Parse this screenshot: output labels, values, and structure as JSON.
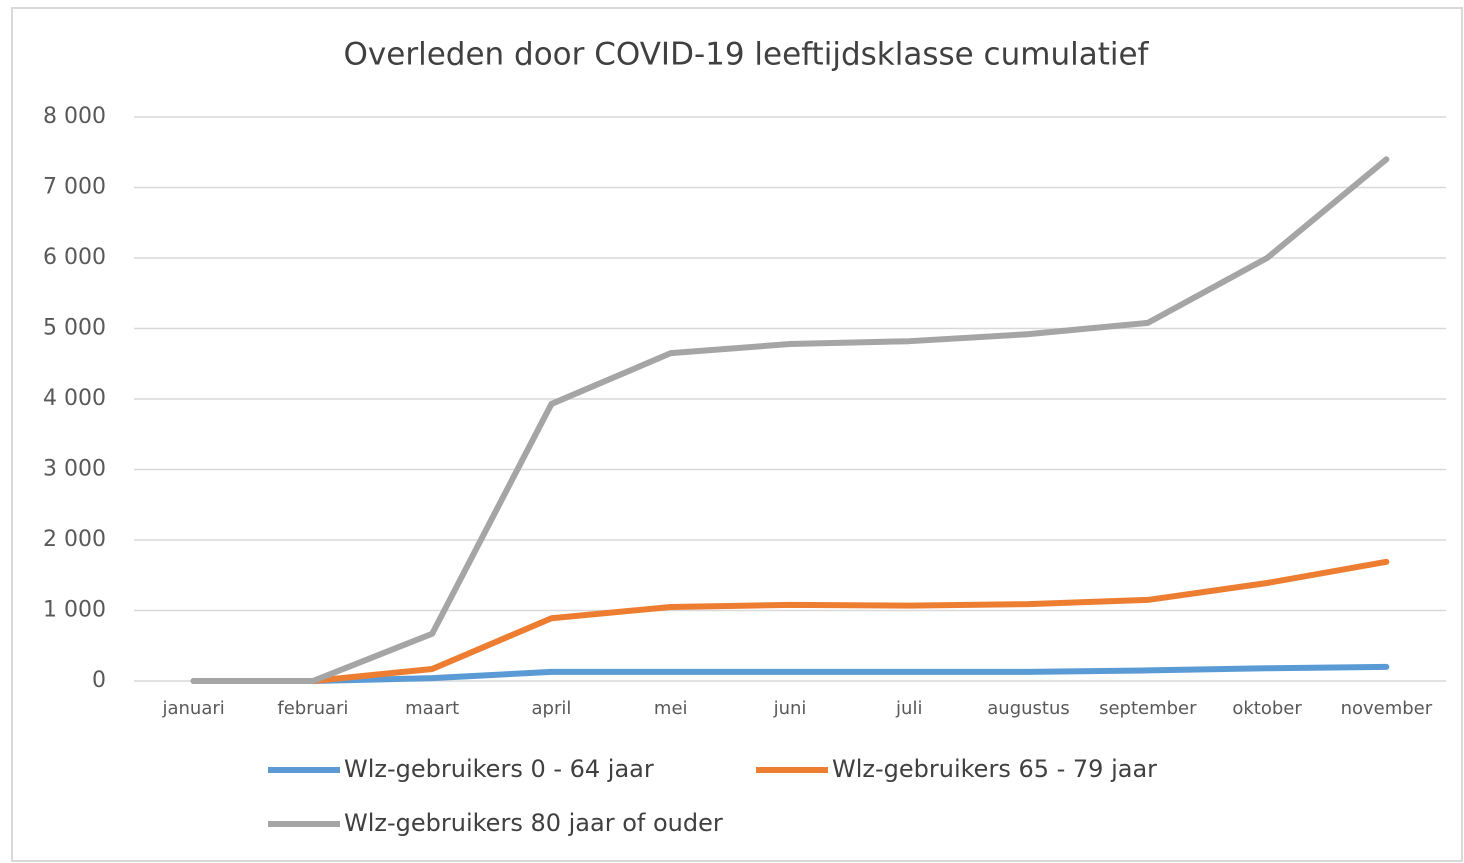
{
  "chart_data": {
    "type": "line",
    "title": "Overleden door COVID-19 leeftijdsklasse cumulatief",
    "categories": [
      "januari",
      "februari",
      "maart",
      "april",
      "mei",
      "juni",
      "juli",
      "augustus",
      "september",
      "oktober",
      "november"
    ],
    "series": [
      {
        "name": "Wlz-gebruikers 0 - 64 jaar",
        "color": "#5b9bd5",
        "values": [
          0,
          0,
          40,
          130,
          130,
          130,
          130,
          130,
          150,
          180,
          200
        ]
      },
      {
        "name": "Wlz-gebruikers 65 - 79 jaar",
        "color": "#ed7d31",
        "values": [
          0,
          0,
          170,
          890,
          1050,
          1080,
          1070,
          1090,
          1150,
          1390,
          1690
        ]
      },
      {
        "name": "Wlz-gebruikers 80 jaar of ouder",
        "color": "#a5a5a5",
        "values": [
          0,
          0,
          670,
          3930,
          4650,
          4780,
          4820,
          4920,
          5080,
          6000,
          7400
        ]
      }
    ],
    "ylim": [
      0,
      8000
    ],
    "yticks": [
      0,
      {
        "value": 1000,
        "label": "1 000"
      },
      {
        "value": 2000,
        "label": "2 000"
      },
      {
        "value": 3000,
        "label": "3 000"
      },
      {
        "value": 4000,
        "label": "4 000"
      },
      {
        "value": 5000,
        "label": "5 000"
      },
      {
        "value": 6000,
        "label": "6 000"
      },
      {
        "value": 7000,
        "label": "7 000"
      },
      {
        "value": 8000,
        "label": "8 000"
      }
    ],
    "grid": true,
    "legend": "bottom"
  }
}
